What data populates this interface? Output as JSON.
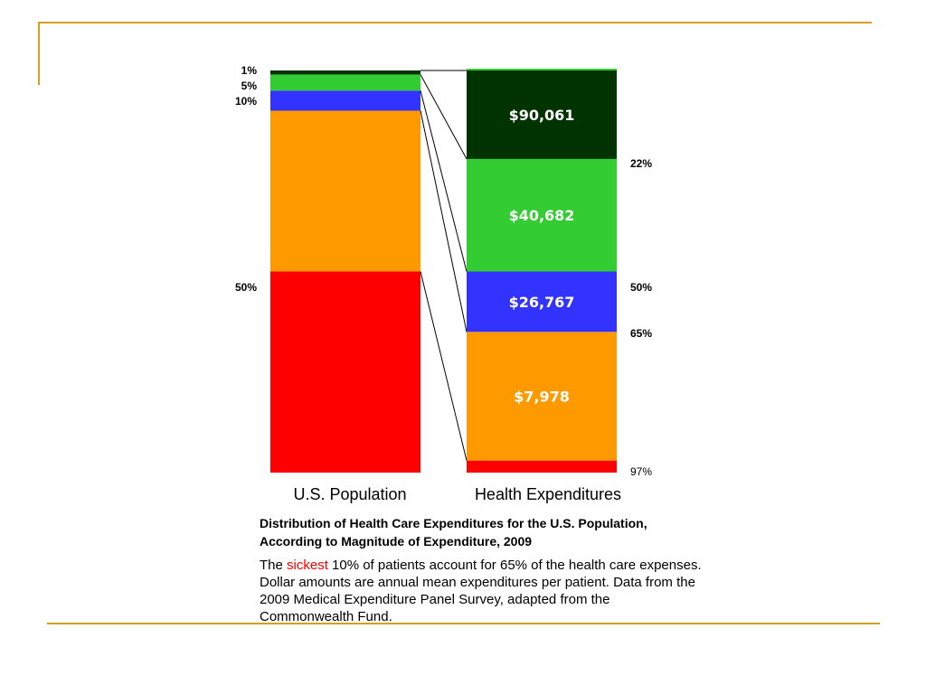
{
  "theme": {
    "rule_color": "#d4a020"
  },
  "chart_data": {
    "type": "bar",
    "categories": [
      "U.S. Population",
      "Health Expenditures"
    ],
    "segments": [
      {
        "population_share": 50,
        "expenditure_share": 3,
        "mean_expenditure": "",
        "color": "#ff0000"
      },
      {
        "population_share": 40,
        "expenditure_share": 32,
        "mean_expenditure": "$7,978",
        "color": "#ff9900"
      },
      {
        "population_share": 5,
        "expenditure_share": 15,
        "mean_expenditure": "$26,767",
        "color": "#3333ff"
      },
      {
        "population_share": 4,
        "expenditure_share": 28,
        "mean_expenditure": "$40,682",
        "color": "#33cc33"
      },
      {
        "population_share": 1,
        "expenditure_share": 22,
        "mean_expenditure": "$90,061",
        "color": "#003300"
      }
    ],
    "population_labels": [
      "1%",
      "5%",
      "10%",
      "50%"
    ],
    "expenditure_labels": [
      "22%",
      "50%",
      "65%",
      "97%"
    ],
    "title": "Distribution of Health Care Expenditures for the U.S. Population, According to Magnitude of Expenditure, 2009",
    "ylim": [
      0,
      100
    ]
  },
  "caption": {
    "pre": "The ",
    "highlight": "sickest",
    "highlight_color": "#ff0000",
    "post": " 10% of patients account for 65% of the health care expenses.  Dollar amounts are annual mean expenditures per patient.  Data from the 2009 Medical Expenditure Panel Survey, adapted from the Commonwealth Fund."
  }
}
